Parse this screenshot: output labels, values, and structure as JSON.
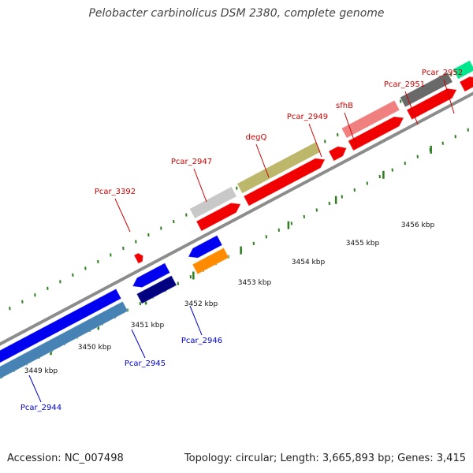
{
  "title": "Pelobacter carbinolicus DSM 2380, complete genome",
  "footer": {
    "accession": "Accession: NC_007498",
    "summary": "Topology: circular; Length: 3,665,893 bp; Genes: 3,415"
  },
  "colors": {
    "backbone": "#8c8c8c",
    "tick": "#2e7d1f",
    "label_forward": "#cc0000",
    "label_reverse": "#0000cc"
  },
  "scale_labels": [
    "3449 kbp",
    "3450 kbp",
    "3451 kbp",
    "3452 kbp",
    "3453 kbp",
    "3454 kbp",
    "3455 kbp",
    "3456 kbp"
  ],
  "genes": {
    "forward": [
      "Pcar_3392",
      "Pcar_2947",
      "degQ",
      "Pcar_2949",
      "sfhB",
      "Pcar_2951",
      "Pcar_2952"
    ],
    "reverse": [
      "Pcar_2944",
      "Pcar_2945",
      "Pcar_2946"
    ]
  }
}
